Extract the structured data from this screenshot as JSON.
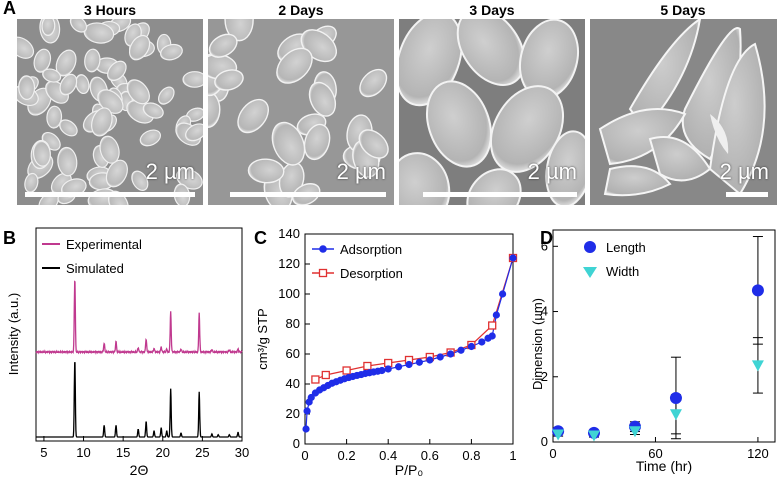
{
  "panel_a": {
    "letter": "A",
    "images": [
      {
        "title": "3 Hours",
        "scale": "2 µm"
      },
      {
        "title": "2 Days",
        "scale": "2 µm"
      },
      {
        "title": "3 Days",
        "scale": "2 µm"
      },
      {
        "title": "5 Days",
        "scale": "2 µm"
      }
    ]
  },
  "chart_data": [
    {
      "panel": "B",
      "type": "line",
      "xlabel": "2Θ",
      "ylabel": "Intensity (a.u.)",
      "xlim": [
        4,
        30
      ],
      "xticks": [
        5,
        10,
        15,
        20,
        25,
        30
      ],
      "series": [
        {
          "name": "Experimental",
          "color": "#c0398f",
          "peaks": [
            [
              8.9,
              1.0
            ],
            [
              12.6,
              0.12
            ],
            [
              14.1,
              0.14
            ],
            [
              16.9,
              0.06
            ],
            [
              17.9,
              0.18
            ],
            [
              18.9,
              0.05
            ],
            [
              19.8,
              0.07
            ],
            [
              20.5,
              0.04
            ],
            [
              21.0,
              0.55
            ],
            [
              22.3,
              0.04
            ],
            [
              24.6,
              0.52
            ],
            [
              26.2,
              0.03
            ],
            [
              28.4,
              0.03
            ],
            [
              29.5,
              0.04
            ]
          ]
        },
        {
          "name": "Simulated",
          "color": "#000000",
          "peaks": [
            [
              8.9,
              1.0
            ],
            [
              12.6,
              0.15
            ],
            [
              14.1,
              0.15
            ],
            [
              16.9,
              0.1
            ],
            [
              17.9,
              0.2
            ],
            [
              18.9,
              0.08
            ],
            [
              19.8,
              0.12
            ],
            [
              20.5,
              0.08
            ],
            [
              21.0,
              0.62
            ],
            [
              22.3,
              0.05
            ],
            [
              24.6,
              0.58
            ],
            [
              26.2,
              0.04
            ],
            [
              27.0,
              0.03
            ],
            [
              28.4,
              0.03
            ],
            [
              29.5,
              0.06
            ]
          ]
        }
      ]
    },
    {
      "panel": "C",
      "type": "line",
      "xlabel": "P/P₀",
      "ylabel": "cm³/g STP",
      "xlim": [
        0,
        1
      ],
      "ylim": [
        0,
        140
      ],
      "xticks": [
        0,
        0.2,
        0.4,
        0.6,
        0.8,
        1
      ],
      "xtick_labels": [
        "0",
        "0.2",
        "0.4",
        "0.6",
        "0.8",
        "1"
      ],
      "yticks": [
        0,
        20,
        40,
        60,
        80,
        100,
        120,
        140
      ],
      "series": [
        {
          "name": "Adsorption",
          "color": "#1f2de8",
          "marker": "filled-circle",
          "x": [
            0.005,
            0.01,
            0.02,
            0.03,
            0.05,
            0.07,
            0.09,
            0.11,
            0.13,
            0.15,
            0.17,
            0.19,
            0.21,
            0.23,
            0.25,
            0.27,
            0.29,
            0.31,
            0.33,
            0.35,
            0.37,
            0.4,
            0.45,
            0.5,
            0.55,
            0.6,
            0.65,
            0.7,
            0.75,
            0.8,
            0.85,
            0.88,
            0.9,
            0.92,
            0.95,
            1.0
          ],
          "y": [
            10,
            22,
            28,
            31,
            34,
            36,
            37.5,
            39,
            40.5,
            41.5,
            42.5,
            43.5,
            44.3,
            45,
            45.7,
            46.3,
            47,
            47.5,
            48,
            48.5,
            49,
            50,
            51.5,
            53,
            54.5,
            56,
            58,
            60,
            62.5,
            65,
            68,
            70.5,
            72,
            86,
            100,
            124
          ]
        },
        {
          "name": "Desorption",
          "color": "#e03131",
          "marker": "open-square",
          "x": [
            0.05,
            0.1,
            0.2,
            0.3,
            0.4,
            0.5,
            0.6,
            0.7,
            0.8,
            0.9,
            1.0
          ],
          "y": [
            43,
            46,
            49,
            52,
            54,
            56,
            58,
            61,
            66,
            79,
            124
          ]
        }
      ]
    },
    {
      "panel": "D",
      "type": "scatter",
      "xlabel": "Time (hr)",
      "ylabel": "Dimension (µm)",
      "xlim": [
        0,
        130
      ],
      "ylim": [
        0,
        6.5
      ],
      "xticks": [
        0,
        60,
        120
      ],
      "yticks": [
        0,
        2,
        4,
        6
      ],
      "series": [
        {
          "name": "Length",
          "color": "#1f2de8",
          "marker": "circle",
          "x": [
            3,
            24,
            48,
            72,
            120
          ],
          "y": [
            0.33,
            0.28,
            0.47,
            1.35,
            4.65
          ],
          "err": [
            0.08,
            0.07,
            0.15,
            1.25,
            1.65
          ]
        },
        {
          "name": "Width",
          "color": "#3fd4d4",
          "marker": "triangle-down",
          "x": [
            3,
            24,
            48,
            72,
            120
          ],
          "y": [
            0.23,
            0.2,
            0.33,
            0.85,
            2.35
          ],
          "err": [
            0.05,
            0.05,
            0.1,
            0.6,
            0.85
          ]
        }
      ]
    }
  ]
}
